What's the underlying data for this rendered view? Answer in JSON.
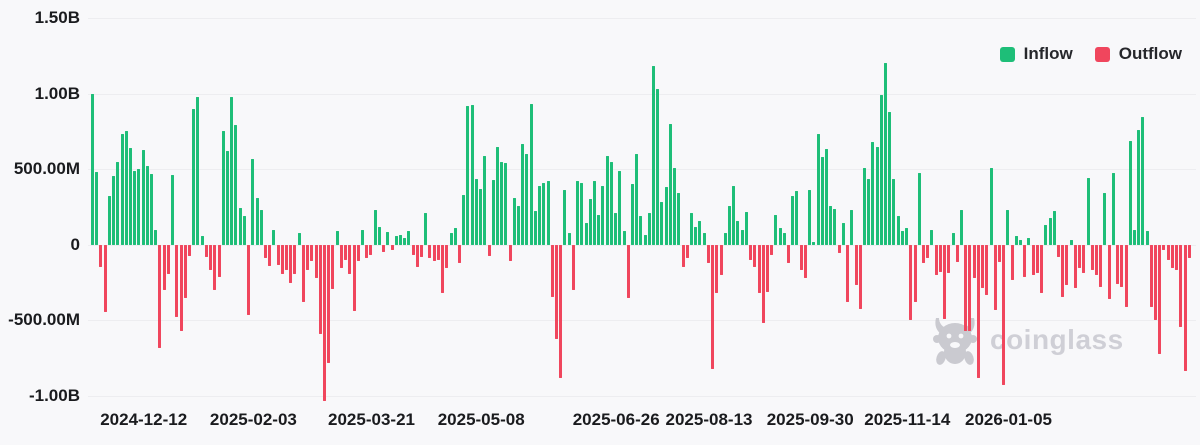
{
  "legend": {
    "inflow": "Inflow",
    "outflow": "Outflow"
  },
  "watermark": {
    "text": "coinglass"
  },
  "chart_data": {
    "type": "bar",
    "title": "",
    "description_of_visible_content": "Daily inflow/outflow bar chart, positive green bars (Inflow) and negative red bars (Outflow), values in USD",
    "grid": "horizontal",
    "legend_position": "top-right",
    "colors": {
      "inflow": "#1ebe78",
      "outflow": "#f0465d",
      "background": "#f8f8fa",
      "gridline": "#ededf0",
      "label": "#1a1b1e",
      "watermark": "#c9c9d0"
    },
    "ylim_millions": [
      -1150,
      1630
    ],
    "y_ticks": [
      {
        "label": "1.50B",
        "value": 1500
      },
      {
        "label": "1.00B",
        "value": 1000
      },
      {
        "label": "500.00M",
        "value": 500
      },
      {
        "label": "0",
        "value": 0
      },
      {
        "label": "-500.00M",
        "value": -500
      },
      {
        "label": "-1.00B",
        "value": -1000
      }
    ],
    "x_ticks": [
      {
        "label": "2024-12-12",
        "index": 12
      },
      {
        "label": "2025-02-03",
        "index": 38
      },
      {
        "label": "2025-03-21",
        "index": 66
      },
      {
        "label": "2025-05-08",
        "index": 92
      },
      {
        "label": "2025-06-26",
        "index": 124
      },
      {
        "label": "2025-08-13",
        "index": 146
      },
      {
        "label": "2025-09-30",
        "index": 170
      },
      {
        "label": "2025-11-14",
        "index": 193
      },
      {
        "label": "2026-01-05",
        "index": 217
      }
    ],
    "values_millions": [
      1000,
      480,
      -145,
      -445,
      320,
      455,
      545,
      730,
      755,
      640,
      485,
      500,
      625,
      520,
      465,
      100,
      -680,
      -300,
      -190,
      460,
      -480,
      -570,
      -350,
      -75,
      900,
      975,
      55,
      -80,
      -165,
      -300,
      -210,
      750,
      620,
      975,
      790,
      245,
      190,
      -465,
      570,
      310,
      230,
      -85,
      -140,
      95,
      -135,
      -190,
      -165,
      -255,
      -190,
      80,
      -380,
      -165,
      -110,
      -220,
      -590,
      -1030,
      -780,
      -290,
      90,
      -155,
      -100,
      -190,
      -435,
      -110,
      100,
      -90,
      -65,
      230,
      120,
      -45,
      85,
      -35,
      55,
      65,
      45,
      90,
      -65,
      -145,
      -80,
      210,
      -90,
      -110,
      -100,
      -320,
      -155,
      80,
      110,
      -120,
      330,
      920,
      925,
      435,
      370,
      590,
      -75,
      430,
      650,
      545,
      540,
      -110,
      310,
      255,
      665,
      600,
      933,
      222,
      390,
      410,
      420,
      -345,
      -620,
      -880,
      365,
      80,
      -300,
      420,
      410,
      145,
      300,
      420,
      200,
      390,
      590,
      550,
      210,
      490,
      90,
      -350,
      400,
      600,
      190,
      65,
      210,
      1180,
      1030,
      280,
      380,
      800,
      510,
      345,
      -145,
      -90,
      210,
      120,
      155,
      80,
      -120,
      -820,
      -320,
      -200,
      80,
      255,
      390,
      155,
      100,
      220,
      -100,
      -145,
      -320,
      -520,
      -310,
      -65,
      200,
      110,
      80,
      -120,
      320,
      355,
      -165,
      -220,
      365,
      20,
      735,
      580,
      635,
      255,
      235,
      -55,
      145,
      -380,
      233,
      -267,
      -422,
      511,
      433,
      678,
      644,
      989,
      1200,
      878,
      433,
      189,
      89,
      111,
      -500,
      -378,
      478,
      -122,
      -89,
      100,
      -200,
      -178,
      -489,
      -189,
      80,
      -111,
      233,
      -567,
      -567,
      -222,
      -878,
      -289,
      -333,
      511,
      -433,
      -111,
      -930,
      233,
      -233,
      56,
      33,
      -211,
      44,
      -200,
      -189,
      -322,
      133,
      178,
      222,
      -78,
      -344,
      -267,
      33,
      -289,
      -156,
      -189,
      444,
      -167,
      -200,
      -278,
      344,
      -356,
      478,
      -256,
      -278,
      -411,
      689,
      100,
      756,
      844,
      89,
      -411,
      -500,
      -722,
      -33,
      -100,
      -156,
      -167,
      -544,
      -833,
      -89
    ]
  }
}
